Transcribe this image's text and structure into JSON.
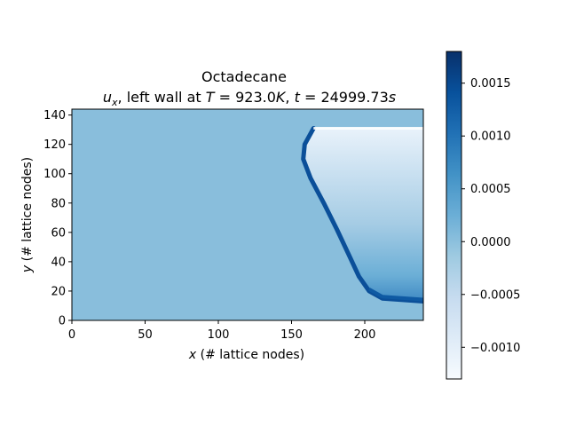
{
  "chart_data": {
    "type": "heatmap",
    "title": "Octadecane",
    "subtitle_parts": {
      "var_base": "u",
      "var_sub": "x",
      "text_mid": ", left wall at ",
      "T_sym": "T",
      "T_val": " = 923.0",
      "T_unit": "K",
      "text_sep": ", ",
      "t_sym": "t",
      "t_val": " = 24999.73",
      "t_unit": "s"
    },
    "xlabel": {
      "sym": "x",
      "rest": " (# lattice nodes)"
    },
    "ylabel": {
      "sym": "y",
      "rest": " (# lattice nodes)"
    },
    "xlim": [
      0,
      240
    ],
    "ylim": [
      0,
      144
    ],
    "xticks": [
      0,
      50,
      100,
      150,
      200
    ],
    "yticks": [
      0,
      20,
      40,
      60,
      80,
      100,
      120,
      140
    ],
    "colormap": "Blues",
    "vmin": -0.0013,
    "vmax": 0.0018,
    "colorbar_ticks": [
      -0.001,
      -0.0005,
      0.0,
      0.0005,
      0.001,
      0.0015
    ],
    "colorbar_tick_labels": [
      "−0.0010",
      "−0.0005",
      "0.0000",
      "0.0005",
      "0.0010",
      "0.0015"
    ],
    "background_value": 0.0,
    "melt_front": [
      {
        "x": 165,
        "y": 131
      },
      {
        "x": 159,
        "y": 120
      },
      {
        "x": 158,
        "y": 110
      },
      {
        "x": 163,
        "y": 97
      },
      {
        "x": 172,
        "y": 80
      },
      {
        "x": 181,
        "y": 62
      },
      {
        "x": 189,
        "y": 45
      },
      {
        "x": 196,
        "y": 30
      },
      {
        "x": 203,
        "y": 20
      },
      {
        "x": 212,
        "y": 15
      },
      {
        "x": 240,
        "y": 13
      }
    ],
    "colors": {
      "axis": "#000000",
      "background_field": "#89bedc"
    }
  }
}
